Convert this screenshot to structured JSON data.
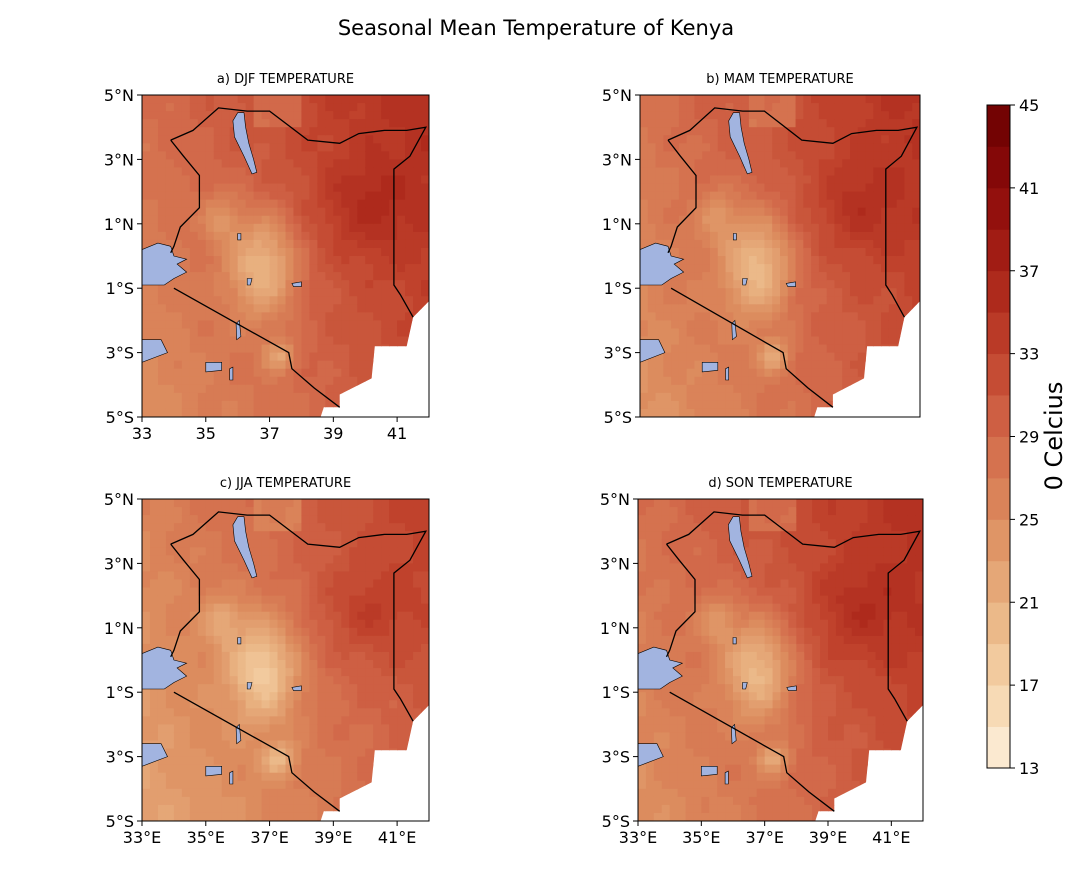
{
  "figure": {
    "title": "Seasonal Mean Temperature of Kenya"
  },
  "panels": [
    {
      "id": "djf",
      "title": "a) DJF TEMPERATURE",
      "x_ticks": [
        "33",
        "35",
        "37",
        "39",
        "41"
      ],
      "x_ticks_shown": true
    },
    {
      "id": "mam",
      "title": "b) MAM TEMPERATURE",
      "x_ticks": [],
      "x_ticks_shown": false
    },
    {
      "id": "jja",
      "title": "c) JJA TEMPERATURE",
      "x_ticks": [
        "33°E",
        "35°E",
        "37°E",
        "39°E",
        "41°E"
      ],
      "x_ticks_shown": true
    },
    {
      "id": "son",
      "title": "d) SON TEMPERATURE",
      "x_ticks": [
        "33°E",
        "35°E",
        "37°E",
        "39°E",
        "41°E"
      ],
      "x_ticks_shown": true
    }
  ],
  "y_ticks": [
    "5°N",
    "3°N",
    "1°N",
    "1°S",
    "3°S",
    "5°S"
  ],
  "colorbar": {
    "label": "0 Celcius",
    "ticks": [
      "13",
      "17",
      "21",
      "25",
      "29",
      "33",
      "37",
      "41",
      "45"
    ],
    "min": 13,
    "max": 45,
    "colormap": "OrRd",
    "colors": [
      "#fdf0dd",
      "#f5d3a8",
      "#e8b07f",
      "#dc8c5e",
      "#d2694a",
      "#c0422c",
      "#a82217",
      "#8c0a0a",
      "#6b0000"
    ]
  },
  "map": {
    "extent_lon": [
      33,
      42
    ],
    "extent_lat": [
      -5,
      5
    ],
    "lake_color": "#a2b4e0",
    "no_data_color": "#ffffff",
    "border_color": "#000000"
  },
  "chart_data": [
    {
      "type": "heatmap",
      "title": "a) DJF TEMPERATURE",
      "variable": "seasonal mean temperature",
      "unit": "°C",
      "range": [
        17,
        40
      ],
      "hot_region": "north-east",
      "cool_region": "central highlands"
    },
    {
      "type": "heatmap",
      "title": "b) MAM TEMPERATURE",
      "variable": "seasonal mean temperature",
      "unit": "°C",
      "range": [
        17,
        38
      ],
      "hot_region": "north-east",
      "cool_region": "central highlands"
    },
    {
      "type": "heatmap",
      "title": "c) JJA TEMPERATURE",
      "variable": "seasonal mean temperature",
      "unit": "°C",
      "range": [
        15,
        36
      ],
      "hot_region": "north-east",
      "cool_region": "central highlands"
    },
    {
      "type": "heatmap",
      "title": "d) SON TEMPERATURE",
      "variable": "seasonal mean temperature",
      "unit": "°C",
      "range": [
        17,
        38
      ],
      "hot_region": "north-east",
      "cool_region": "central highlands"
    }
  ]
}
